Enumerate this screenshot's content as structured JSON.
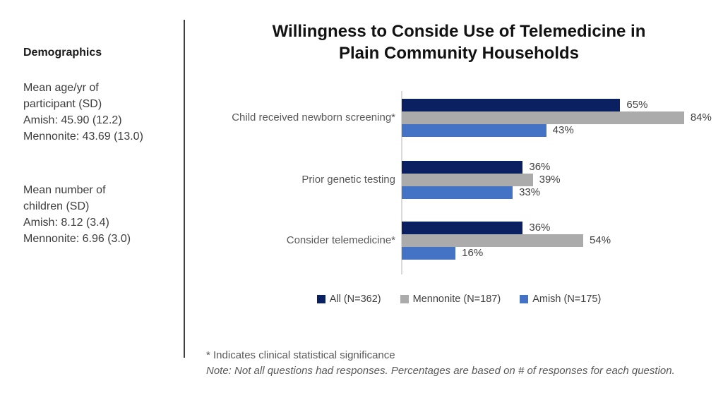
{
  "title_lines": [
    "Willingness to Conside Use of Telemedicine in",
    "Plain Community Households"
  ],
  "left_panel": {
    "heading": "Demographics",
    "blocks": [
      {
        "lines": [
          "Mean age/yr of",
          "participant (SD)",
          "Amish: 45.90 (12.2)",
          "Mennonite: 43.69 (13.0)"
        ]
      },
      {
        "lines": [
          "Mean number of",
          "children (SD)",
          "Amish: 8.12 (3.4)",
          "Mennonite: 6.96 (3.0)"
        ]
      }
    ]
  },
  "chart_data": {
    "type": "bar",
    "orientation": "horizontal",
    "title": "Willingness to Conside Use of Telemedicine in Plain Community Households",
    "categories": [
      "Child received newborn screening*",
      "Prior genetic testing",
      "Consider telemedicine*"
    ],
    "series": [
      {
        "name": "All (N=362)",
        "color": "#0A2060",
        "values": [
          65,
          36,
          36
        ]
      },
      {
        "name": "Mennonite (N=187)",
        "color": "#ABABAB",
        "values": [
          84,
          39,
          54
        ]
      },
      {
        "name": "Amish (N=175)",
        "color": "#4472C4",
        "values": [
          43,
          33,
          16
        ]
      }
    ],
    "value_suffix": "%",
    "xlim": [
      0,
      100
    ],
    "grid": false,
    "legend_position": "bottom"
  },
  "footnotes": {
    "significance": "* Indicates clinical statistical significance",
    "note": "Note: Not all questions had responses. Percentages are based on # of responses for each question."
  },
  "colors": {
    "axis_line": "#D9D9D9",
    "divider": "#3F3F3F",
    "title_text": "#121212",
    "category_text": "#595959",
    "value_text": "#404040"
  }
}
